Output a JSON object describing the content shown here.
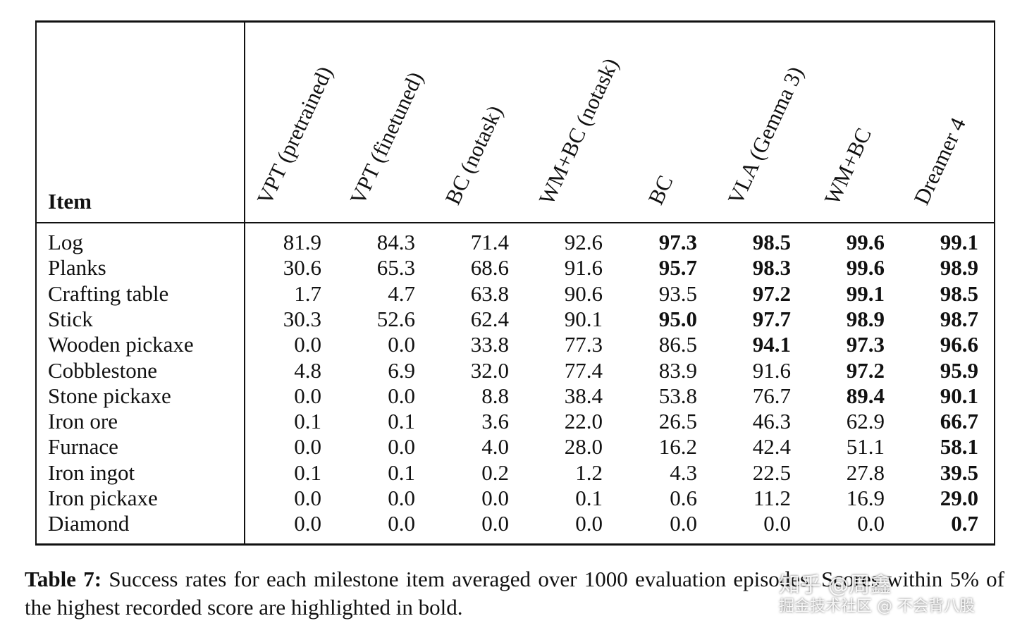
{
  "table": {
    "item_header": "Item",
    "columns": [
      "VPT (pretrained)",
      "VPT (finetuned)",
      "BC (notask)",
      "WM+BC (notask)",
      "BC",
      "VLA (Gemma 3)",
      "WM+BC",
      "Dreamer 4"
    ],
    "rows": [
      {
        "item": "Log",
        "values": [
          "81.9",
          "84.3",
          "71.4",
          "92.6",
          "97.3",
          "98.5",
          "99.6",
          "99.1"
        ],
        "bold": [
          false,
          false,
          false,
          false,
          true,
          true,
          true,
          true
        ]
      },
      {
        "item": "Planks",
        "values": [
          "30.6",
          "65.3",
          "68.6",
          "91.6",
          "95.7",
          "98.3",
          "99.6",
          "98.9"
        ],
        "bold": [
          false,
          false,
          false,
          false,
          true,
          true,
          true,
          true
        ]
      },
      {
        "item": "Crafting table",
        "values": [
          "1.7",
          "4.7",
          "63.8",
          "90.6",
          "93.5",
          "97.2",
          "99.1",
          "98.5"
        ],
        "bold": [
          false,
          false,
          false,
          false,
          false,
          true,
          true,
          true
        ]
      },
      {
        "item": "Stick",
        "values": [
          "30.3",
          "52.6",
          "62.4",
          "90.1",
          "95.0",
          "97.7",
          "98.9",
          "98.7"
        ],
        "bold": [
          false,
          false,
          false,
          false,
          true,
          true,
          true,
          true
        ]
      },
      {
        "item": "Wooden pickaxe",
        "values": [
          "0.0",
          "0.0",
          "33.8",
          "77.3",
          "86.5",
          "94.1",
          "97.3",
          "96.6"
        ],
        "bold": [
          false,
          false,
          false,
          false,
          false,
          true,
          true,
          true
        ]
      },
      {
        "item": "Cobblestone",
        "values": [
          "4.8",
          "6.9",
          "32.0",
          "77.4",
          "83.9",
          "91.6",
          "97.2",
          "95.9"
        ],
        "bold": [
          false,
          false,
          false,
          false,
          false,
          false,
          true,
          true
        ]
      },
      {
        "item": "Stone pickaxe",
        "values": [
          "0.0",
          "0.0",
          "8.8",
          "38.4",
          "53.8",
          "76.7",
          "89.4",
          "90.1"
        ],
        "bold": [
          false,
          false,
          false,
          false,
          false,
          false,
          true,
          true
        ]
      },
      {
        "item": "Iron ore",
        "values": [
          "0.1",
          "0.1",
          "3.6",
          "22.0",
          "26.5",
          "46.3",
          "62.9",
          "66.7"
        ],
        "bold": [
          false,
          false,
          false,
          false,
          false,
          false,
          false,
          true
        ]
      },
      {
        "item": "Furnace",
        "values": [
          "0.0",
          "0.0",
          "4.0",
          "28.0",
          "16.2",
          "42.4",
          "51.1",
          "58.1"
        ],
        "bold": [
          false,
          false,
          false,
          false,
          false,
          false,
          false,
          true
        ]
      },
      {
        "item": "Iron ingot",
        "values": [
          "0.1",
          "0.1",
          "0.2",
          "1.2",
          "4.3",
          "22.5",
          "27.8",
          "39.5"
        ],
        "bold": [
          false,
          false,
          false,
          false,
          false,
          false,
          false,
          true
        ]
      },
      {
        "item": "Iron pickaxe",
        "values": [
          "0.0",
          "0.0",
          "0.0",
          "0.1",
          "0.6",
          "11.2",
          "16.9",
          "29.0"
        ],
        "bold": [
          false,
          false,
          false,
          false,
          false,
          false,
          false,
          true
        ]
      },
      {
        "item": "Diamond",
        "values": [
          "0.0",
          "0.0",
          "0.0",
          "0.0",
          "0.0",
          "0.0",
          "0.0",
          "0.7"
        ],
        "bold": [
          false,
          false,
          false,
          false,
          false,
          false,
          false,
          true
        ]
      }
    ]
  },
  "caption": {
    "label": "Table 7:",
    "text": "Success rates for each milestone item averaged over 1000 evaluation episodes. Scores within 5% of the highest recorded score are highlighted in bold."
  },
  "watermark": {
    "line1": "知乎 @周鑫",
    "line2": "掘金技术社区 @ 不会背八股"
  }
}
